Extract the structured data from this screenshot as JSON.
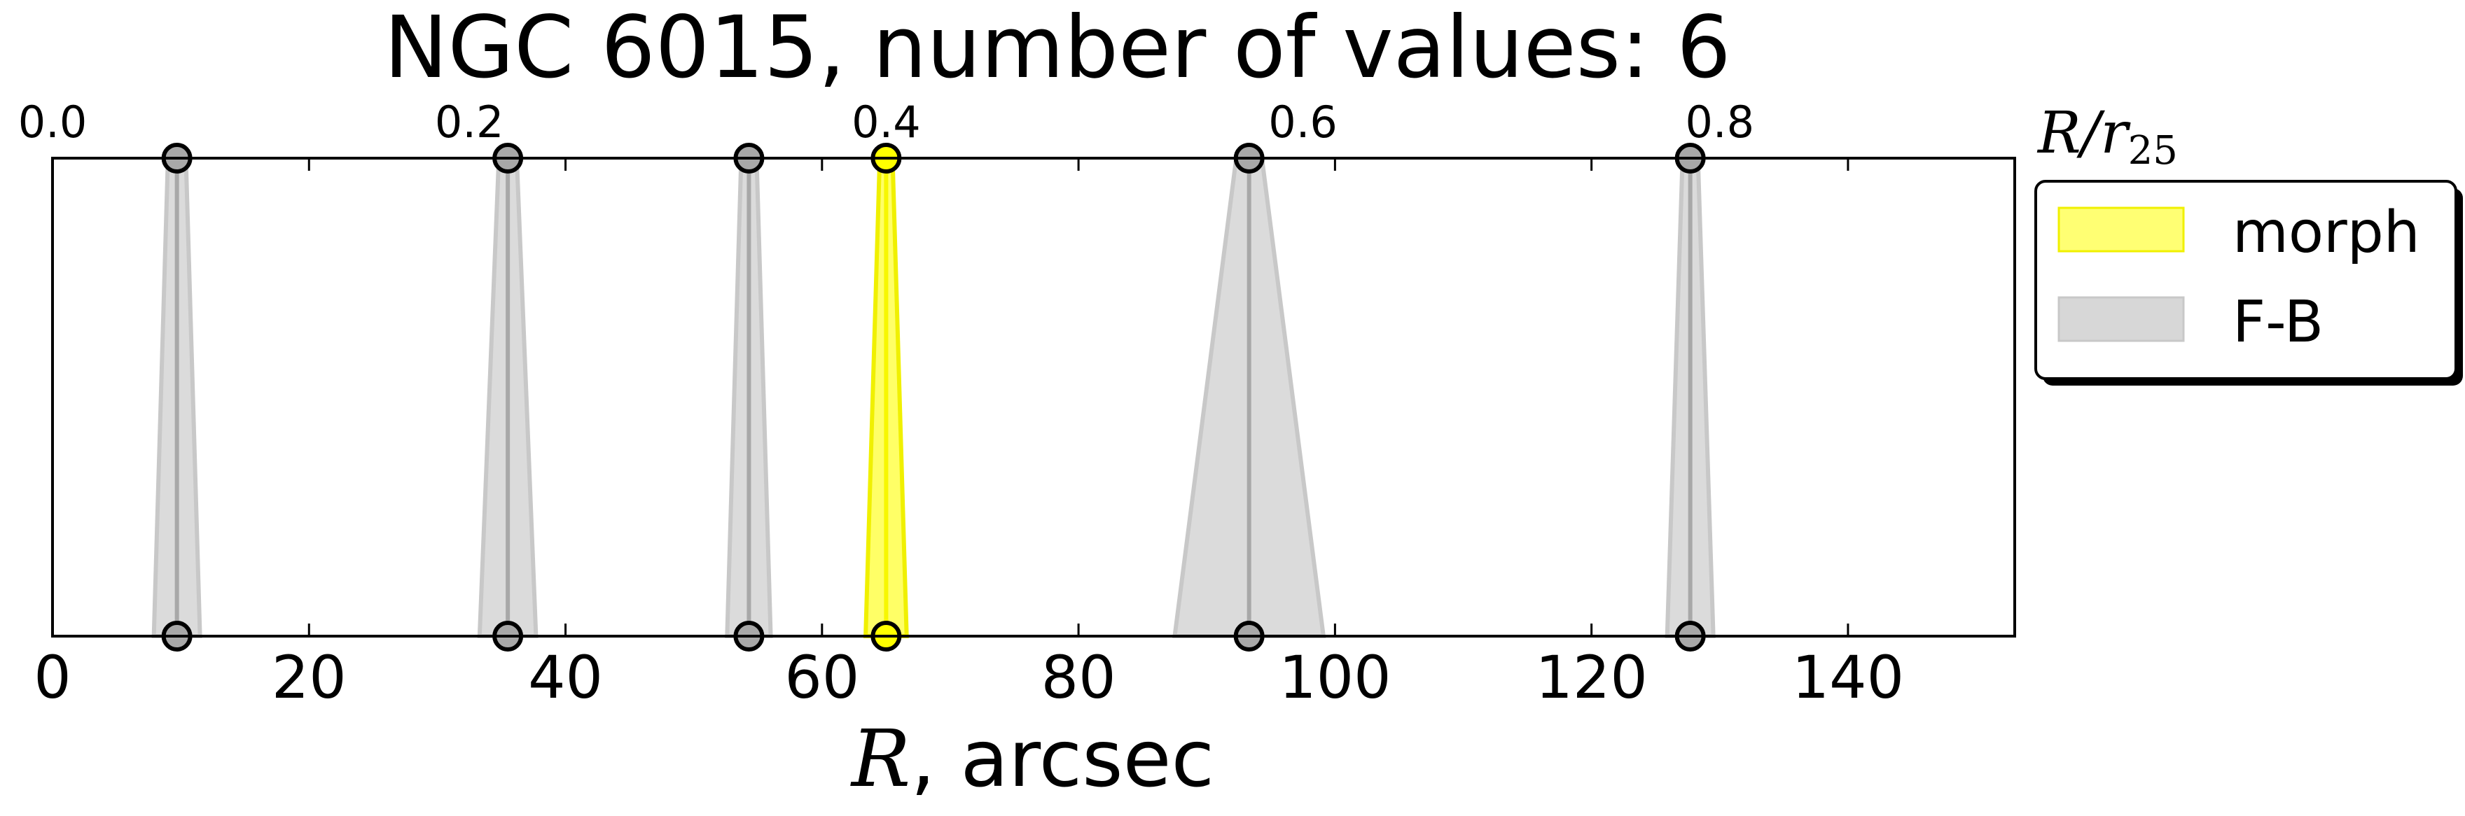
{
  "chart_data": {
    "type": "area",
    "title": "NGC 6015, number of values: 6",
    "xlabel": "R, arcsec",
    "xlabel_var": "R",
    "xlabel_rest": ", arcsec",
    "x2label": "R/r25",
    "x2label_main": "R/r",
    "x2label_sub": "25",
    "xlim": [
      0,
      153
    ],
    "x_ticks": [
      0,
      20,
      40,
      60,
      80,
      100,
      120,
      140
    ],
    "x_tick_labels": [
      "0",
      "20",
      "40",
      "60",
      "80",
      "100",
      "120",
      "140"
    ],
    "x2_ticks": [
      0.0,
      0.2,
      0.4,
      0.6,
      0.8
    ],
    "x2_tick_labels": [
      "0.0",
      "0.2",
      "0.4",
      "0.6",
      "0.8"
    ],
    "x2_ticks_arcsec": [
      0,
      32.5,
      65.0,
      97.5,
      130.0
    ],
    "grid": false,
    "legend_position": "outside-right-top",
    "series": [
      {
        "name": "morph",
        "color": "#ffff00",
        "values": [
          {
            "x": 65.0,
            "err_top": 0.5,
            "err_bottom": 1.6
          }
        ]
      },
      {
        "name": "F-B",
        "color": "#b0b0b0",
        "values": [
          {
            "x": 9.7,
            "err_top": 0.7,
            "err_bottom": 1.8
          },
          {
            "x": 35.5,
            "err_top": 0.7,
            "err_bottom": 2.2
          },
          {
            "x": 54.3,
            "err_top": 0.6,
            "err_bottom": 1.7
          },
          {
            "x": 93.3,
            "err_top": 1.0,
            "err_bottom": 5.8
          },
          {
            "x": 127.7,
            "err_top": 0.6,
            "err_bottom": 1.8
          }
        ]
      }
    ]
  },
  "legend": {
    "items": [
      {
        "label": "morph",
        "color": "#ffff00"
      },
      {
        "label": "F-B",
        "color": "#b0b0b0"
      }
    ]
  }
}
